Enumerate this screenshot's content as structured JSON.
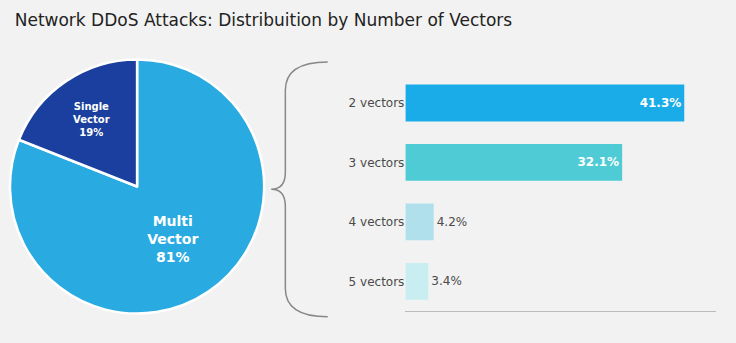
{
  "chart_data": [
    {
      "type": "pie",
      "title": "Network DDoS Attacks: Distribuition by Number of Vectors",
      "values": [
        81,
        19
      ],
      "value_labels": [
        "Multi\nVector\n81%",
        "Single\nVector\n19%"
      ],
      "colors": [
        "#29ABE2",
        "#1B3F9E"
      ],
      "data_labels": true
    },
    {
      "type": "bar",
      "orientation": "horizontal",
      "categories": [
        "2 vectors",
        "3 vectors",
        "4 vectors",
        "5 vectors"
      ],
      "values": [
        41.3,
        32.1,
        4.2,
        3.4
      ],
      "value_labels": [
        "41.3%",
        "32.1%",
        "4.2%",
        "3.4%"
      ],
      "colors": [
        "#1AACE8",
        "#4ECBD4",
        "#B0E0EC",
        "#C8EEF2"
      ],
      "xlim": [
        0,
        46
      ],
      "xticks": [],
      "tick_labels": "y",
      "data_labels": true,
      "grid": false
    }
  ]
}
